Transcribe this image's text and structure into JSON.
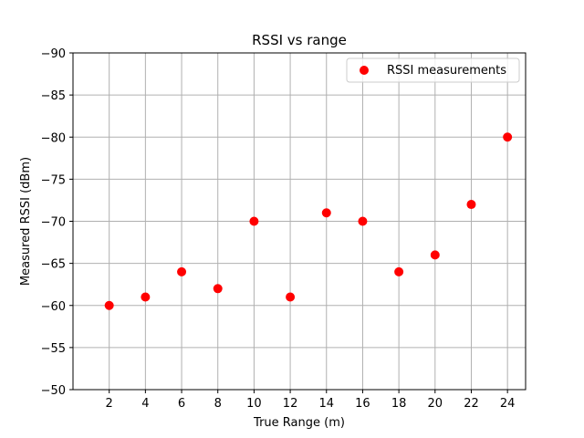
{
  "chart_data": {
    "type": "scatter",
    "title": "RSSI vs range",
    "xlabel": "True Range (m)",
    "ylabel": "Measured RSSI (dBm)",
    "x_ticks": [
      2,
      4,
      6,
      8,
      10,
      12,
      14,
      16,
      18,
      20,
      22,
      24
    ],
    "y_ticks": [
      -50,
      -55,
      -60,
      -65,
      -70,
      -75,
      -80,
      -85,
      -90
    ],
    "y_tick_labels": [
      "−50",
      "−55",
      "−60",
      "−65",
      "−70",
      "−75",
      "−80",
      "−85",
      "−90"
    ],
    "xlim": [
      0,
      25
    ],
    "ylim": [
      -50,
      -90
    ],
    "y_inverted": true,
    "grid": true,
    "legend_position": "top-right",
    "series": [
      {
        "name": "RSSI measurements",
        "color": "#ff0000",
        "marker": "circle",
        "x": [
          2,
          4,
          6,
          8,
          10,
          12,
          14,
          16,
          18,
          20,
          22,
          24
        ],
        "y": [
          -60,
          -61,
          -64,
          -62,
          -70,
          -61,
          -71,
          -70,
          -64,
          -66,
          -72,
          -80
        ]
      }
    ]
  }
}
